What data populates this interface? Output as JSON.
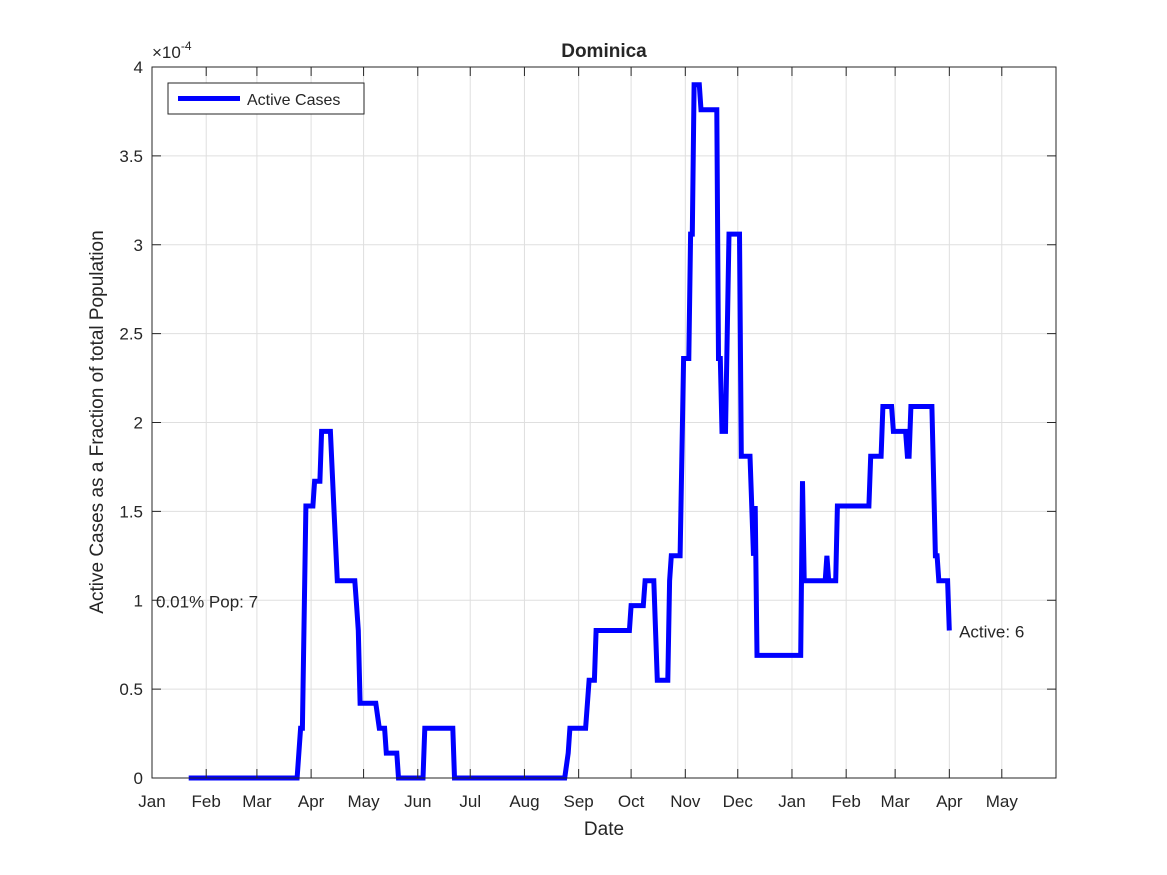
{
  "chart_data": {
    "type": "line",
    "title": "Dominica",
    "xlabel": "Date",
    "ylabel": "Active Cases as a Fraction of total Population",
    "y_exponent_label": "×10",
    "y_exponent_power": "-4",
    "y_scale": 0.0001,
    "ylim": [
      0,
      4
    ],
    "yticks": [
      0,
      0.5,
      1,
      1.5,
      2,
      2.5,
      3,
      3.5,
      4
    ],
    "ytick_labels": [
      "0",
      "0.5",
      "1",
      "1.5",
      "2",
      "2.5",
      "3",
      "3.5",
      "4"
    ],
    "xlim": [
      "2020-01-01",
      "2021-06-01"
    ],
    "xticks": [
      "2020-01-01",
      "2020-02-01",
      "2020-03-01",
      "2020-04-01",
      "2020-05-01",
      "2020-06-01",
      "2020-07-01",
      "2020-08-01",
      "2020-09-01",
      "2020-10-01",
      "2020-11-01",
      "2020-12-01",
      "2021-01-01",
      "2021-02-01",
      "2021-03-01",
      "2021-04-01",
      "2021-05-01"
    ],
    "xtick_labels": [
      "Jan",
      "Feb",
      "Mar",
      "Apr",
      "May",
      "Jun",
      "Jul",
      "Aug",
      "Sep",
      "Oct",
      "Nov",
      "Dec",
      "Jan",
      "Feb",
      "Mar",
      "Apr",
      "May"
    ],
    "grid": true,
    "legend": {
      "position": "top-left",
      "entries": [
        "Active Cases"
      ]
    },
    "series": [
      {
        "name": "Active Cases",
        "color": "#0000ff",
        "points": [
          [
            "2020-01-22",
            0
          ],
          [
            "2020-03-24",
            0
          ],
          [
            "2020-03-26",
            0.28
          ],
          [
            "2020-03-27",
            0.28
          ],
          [
            "2020-03-29",
            1.53
          ],
          [
            "2020-04-02",
            1.53
          ],
          [
            "2020-04-03",
            1.67
          ],
          [
            "2020-04-06",
            1.67
          ],
          [
            "2020-04-07",
            1.95
          ],
          [
            "2020-04-12",
            1.95
          ],
          [
            "2020-04-14",
            1.53
          ],
          [
            "2020-04-16",
            1.11
          ],
          [
            "2020-04-26",
            1.11
          ],
          [
            "2020-04-27",
            0.97
          ],
          [
            "2020-04-28",
            0.83
          ],
          [
            "2020-04-29",
            0.42
          ],
          [
            "2020-05-08",
            0.42
          ],
          [
            "2020-05-10",
            0.28
          ],
          [
            "2020-05-13",
            0.28
          ],
          [
            "2020-05-14",
            0.14
          ],
          [
            "2020-05-20",
            0.14
          ],
          [
            "2020-05-21",
            0
          ],
          [
            "2020-06-04",
            0
          ],
          [
            "2020-06-05",
            0.28
          ],
          [
            "2020-06-21",
            0.28
          ],
          [
            "2020-06-22",
            0
          ],
          [
            "2020-08-24",
            0
          ],
          [
            "2020-08-26",
            0.14
          ],
          [
            "2020-08-27",
            0.28
          ],
          [
            "2020-09-05",
            0.28
          ],
          [
            "2020-09-07",
            0.55
          ],
          [
            "2020-09-10",
            0.55
          ],
          [
            "2020-09-11",
            0.83
          ],
          [
            "2020-09-30",
            0.83
          ],
          [
            "2020-10-01",
            0.97
          ],
          [
            "2020-10-08",
            0.97
          ],
          [
            "2020-10-09",
            1.11
          ],
          [
            "2020-10-14",
            1.11
          ],
          [
            "2020-10-16",
            0.55
          ],
          [
            "2020-10-22",
            0.55
          ],
          [
            "2020-10-23",
            1.11
          ],
          [
            "2020-10-24",
            1.25
          ],
          [
            "2020-10-29",
            1.25
          ],
          [
            "2020-10-31",
            2.36
          ],
          [
            "2020-11-03",
            2.36
          ],
          [
            "2020-11-04",
            3.06
          ],
          [
            "2020-11-05",
            3.06
          ],
          [
            "2020-11-06",
            3.9
          ],
          [
            "2020-11-09",
            3.9
          ],
          [
            "2020-11-10",
            3.76
          ],
          [
            "2020-11-19",
            3.76
          ],
          [
            "2020-11-20",
            2.36
          ],
          [
            "2020-11-21",
            2.36
          ],
          [
            "2020-11-22",
            1.95
          ],
          [
            "2020-11-24",
            1.95
          ],
          [
            "2020-11-26",
            3.06
          ],
          [
            "2020-12-02",
            3.06
          ],
          [
            "2020-12-03",
            1.81
          ],
          [
            "2020-12-08",
            1.81
          ],
          [
            "2020-12-10",
            1.25
          ],
          [
            "2020-12-11",
            1.53
          ],
          [
            "2020-12-12",
            0.69
          ],
          [
            "2021-01-06",
            0.69
          ],
          [
            "2021-01-07",
            1.67
          ],
          [
            "2021-01-08",
            1.11
          ],
          [
            "2021-01-20",
            1.11
          ],
          [
            "2021-01-21",
            1.25
          ],
          [
            "2021-01-22",
            1.11
          ],
          [
            "2021-01-26",
            1.11
          ],
          [
            "2021-01-27",
            1.53
          ],
          [
            "2021-02-14",
            1.53
          ],
          [
            "2021-02-15",
            1.81
          ],
          [
            "2021-02-21",
            1.81
          ],
          [
            "2021-02-22",
            2.09
          ],
          [
            "2021-02-27",
            2.09
          ],
          [
            "2021-02-28",
            1.95
          ],
          [
            "2021-03-07",
            1.95
          ],
          [
            "2021-03-08",
            1.81
          ],
          [
            "2021-03-09",
            1.81
          ],
          [
            "2021-03-10",
            2.09
          ],
          [
            "2021-03-22",
            2.09
          ],
          [
            "2021-03-24",
            1.25
          ],
          [
            "2021-03-25",
            1.25
          ],
          [
            "2021-03-26",
            1.11
          ],
          [
            "2021-03-31",
            1.11
          ],
          [
            "2021-04-01",
            0.83
          ]
        ]
      }
    ],
    "annotations": [
      {
        "text": "0.01% Pop: 7",
        "date": "2020-01-01",
        "y": 1.0,
        "anchor": "start"
      },
      {
        "text": "Active: 6",
        "date": "2021-04-02",
        "y": 0.83,
        "anchor": "start"
      }
    ]
  }
}
